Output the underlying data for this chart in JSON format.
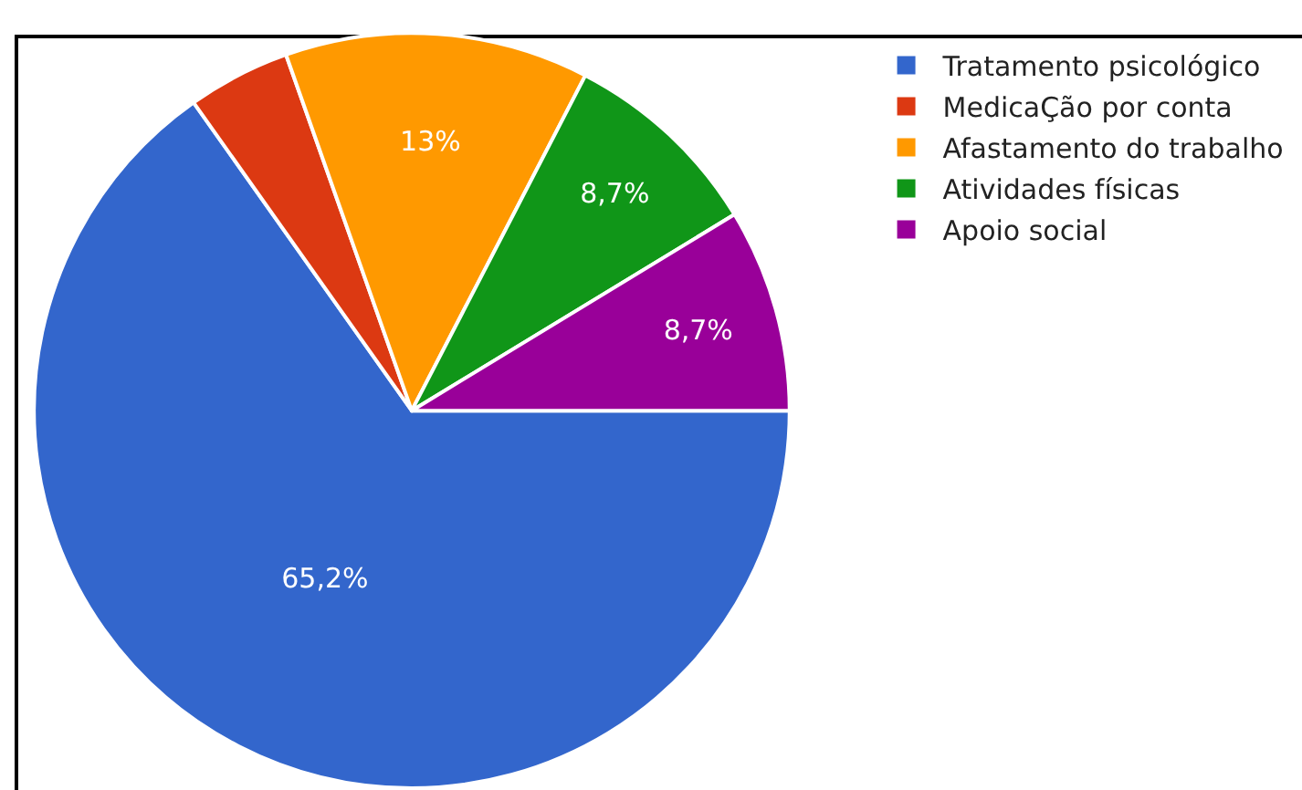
{
  "chart_data": {
    "type": "pie",
    "categories": [
      "Tratamento psicológico",
      "MedicaÇão por conta",
      "Afastamento do trabalho",
      "Atividades físicas",
      "Apoio social"
    ],
    "values": [
      65.2,
      4.4,
      13,
      8.7,
      8.7
    ],
    "colors": [
      "#3366cc",
      "#dc3912",
      "#ff9900",
      "#109618",
      "#990099"
    ],
    "value_labels": [
      "65,2%",
      null,
      "13%",
      "8,7%",
      "8,7%"
    ],
    "legend": "top right"
  }
}
